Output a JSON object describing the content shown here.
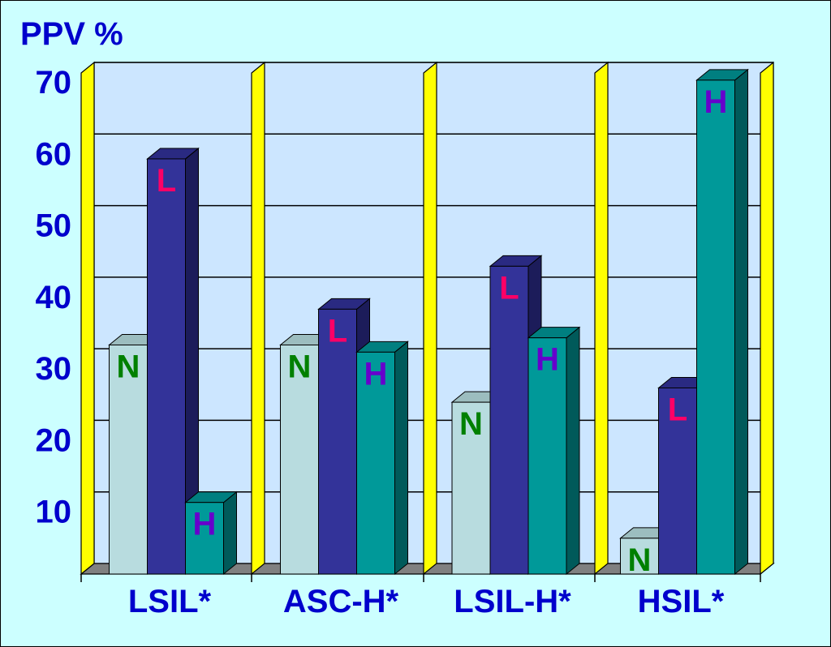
{
  "chart_data": {
    "type": "bar",
    "three_d": true,
    "title": "",
    "xlabel": "",
    "ylabel": "PPV %",
    "categories": [
      "LSIL*",
      "ASC-H*",
      "LSIL-H*",
      "HSIL*"
    ],
    "series": [
      {
        "name": "N",
        "values": [
          32,
          32,
          24,
          5
        ],
        "color": "#B8DCDF",
        "top_color": "#9CBDBF",
        "side_color": "#7DA0A2",
        "label_color": "#008000"
      },
      {
        "name": "L",
        "values": [
          58,
          37,
          43,
          26
        ],
        "color": "#333399",
        "top_color": "#2A2A82",
        "side_color": "#1C1C5A",
        "label_color": "#FF0066"
      },
      {
        "name": "H",
        "values": [
          10,
          31,
          33,
          69
        ],
        "color": "#009999",
        "top_color": "#007F80",
        "side_color": "#005A5A",
        "label_color": "#6600CC"
      }
    ],
    "ylim": [
      0,
      70
    ],
    "yticks": [
      10,
      20,
      30,
      40,
      50,
      60,
      70
    ],
    "grid": true
  },
  "colors": {
    "page_background": "#CCFFFF",
    "plot_wall": "#CCE6FF",
    "divider_wall": "#FFFF00",
    "floor": "#808080",
    "axis_text": "#0000CC",
    "frame": "#000000"
  }
}
